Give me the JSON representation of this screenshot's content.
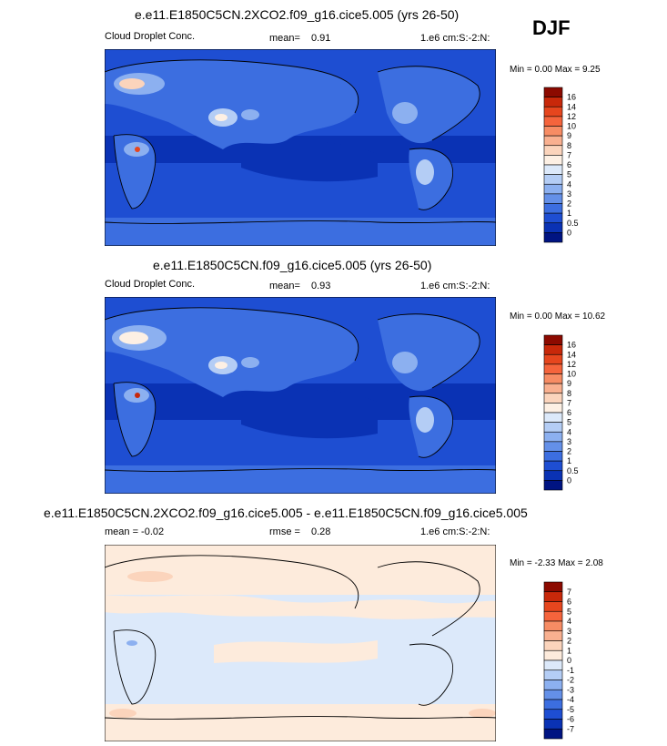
{
  "season": "DJF",
  "panels": [
    {
      "title": "e.e11.E1850C5CN.2XCO2.f09_g16.cice5.005 (yrs 26-50)",
      "left_label": "Cloud Droplet Conc.",
      "stat_label": "mean=",
      "stat_value": "0.91",
      "units": "1.e6 cm:S:-2:N:",
      "minmax": "Min =   0.00 Max =   9.25"
    },
    {
      "title": "e.e11.E1850C5CN.f09_g16.cice5.005 (yrs 26-50)",
      "left_label": "Cloud Droplet Conc.",
      "stat_label": "mean=",
      "stat_value": "0.93",
      "units": "1.e6 cm:S:-2:N:",
      "minmax": "Min =   0.00 Max =  10.62"
    },
    {
      "title": "e.e11.E1850C5CN.2XCO2.f09_g16.cice5.005 - e.e11.E1850C5CN.f09_g16.cice5.005",
      "left_label": "mean =  -0.02",
      "stat_label": "rmse =",
      "stat_value": "0.28",
      "units": "1.e6 cm:S:-2:N:",
      "minmax": "Min =  -2.33 Max =   2.08"
    }
  ],
  "chart_data": [
    {
      "type": "heatmap",
      "title": "e.e11.E1850C5CN.2XCO2.f09_g16.cice5.005 (yrs 26-50)",
      "variable": "Cloud Droplet Conc.",
      "mean": 0.91,
      "min": 0.0,
      "max": 9.25,
      "colorbar_levels": [
        "16",
        "14",
        "12",
        "10",
        "9",
        "8",
        "7",
        "6",
        "5",
        "4",
        "3",
        "2",
        "1",
        "0.5",
        "0"
      ],
      "colorbar_colors": [
        "#8c0a00",
        "#c8280a",
        "#e6461e",
        "#f5643c",
        "#f78c64",
        "#f9b090",
        "#fbd4bc",
        "#fdf0e4",
        "#dce9fa",
        "#b4cdf5",
        "#8cb0f0",
        "#6490e8",
        "#3c6ee0",
        "#1e4ed2",
        "#0a32b4",
        "#001482"
      ]
    },
    {
      "type": "heatmap",
      "title": "e.e11.E1850C5CN.f09_g16.cice5.005 (yrs 26-50)",
      "variable": "Cloud Droplet Conc.",
      "mean": 0.93,
      "min": 0.0,
      "max": 10.62,
      "colorbar_levels": [
        "16",
        "14",
        "12",
        "10",
        "9",
        "8",
        "7",
        "6",
        "5",
        "4",
        "3",
        "2",
        "1",
        "0.5",
        "0"
      ],
      "colorbar_colors": [
        "#8c0a00",
        "#c8280a",
        "#e6461e",
        "#f5643c",
        "#f78c64",
        "#f9b090",
        "#fbd4bc",
        "#fdf0e4",
        "#dce9fa",
        "#b4cdf5",
        "#8cb0f0",
        "#6490e8",
        "#3c6ee0",
        "#1e4ed2",
        "#0a32b4",
        "#001482"
      ]
    },
    {
      "type": "heatmap",
      "title": "e.e11.E1850C5CN.2XCO2.f09_g16.cice5.005 - e.e11.E1850C5CN.f09_g16.cice5.005",
      "mean": -0.02,
      "rmse": 0.28,
      "min": -2.33,
      "max": 2.08,
      "colorbar_levels": [
        "7",
        "6",
        "5",
        "4",
        "3",
        "2",
        "1",
        "0",
        "-1",
        "-2",
        "-3",
        "-4",
        "-5",
        "-6",
        "-7"
      ],
      "colorbar_colors": [
        "#8c0a00",
        "#c8280a",
        "#e6461e",
        "#f5643c",
        "#f78c64",
        "#f9b090",
        "#fbd4bc",
        "#fdebdc",
        "#dce9fa",
        "#b4cdf5",
        "#8cb0f0",
        "#6490e8",
        "#3c6ee0",
        "#1e4ed2",
        "#0a32b4",
        "#001482"
      ]
    }
  ]
}
